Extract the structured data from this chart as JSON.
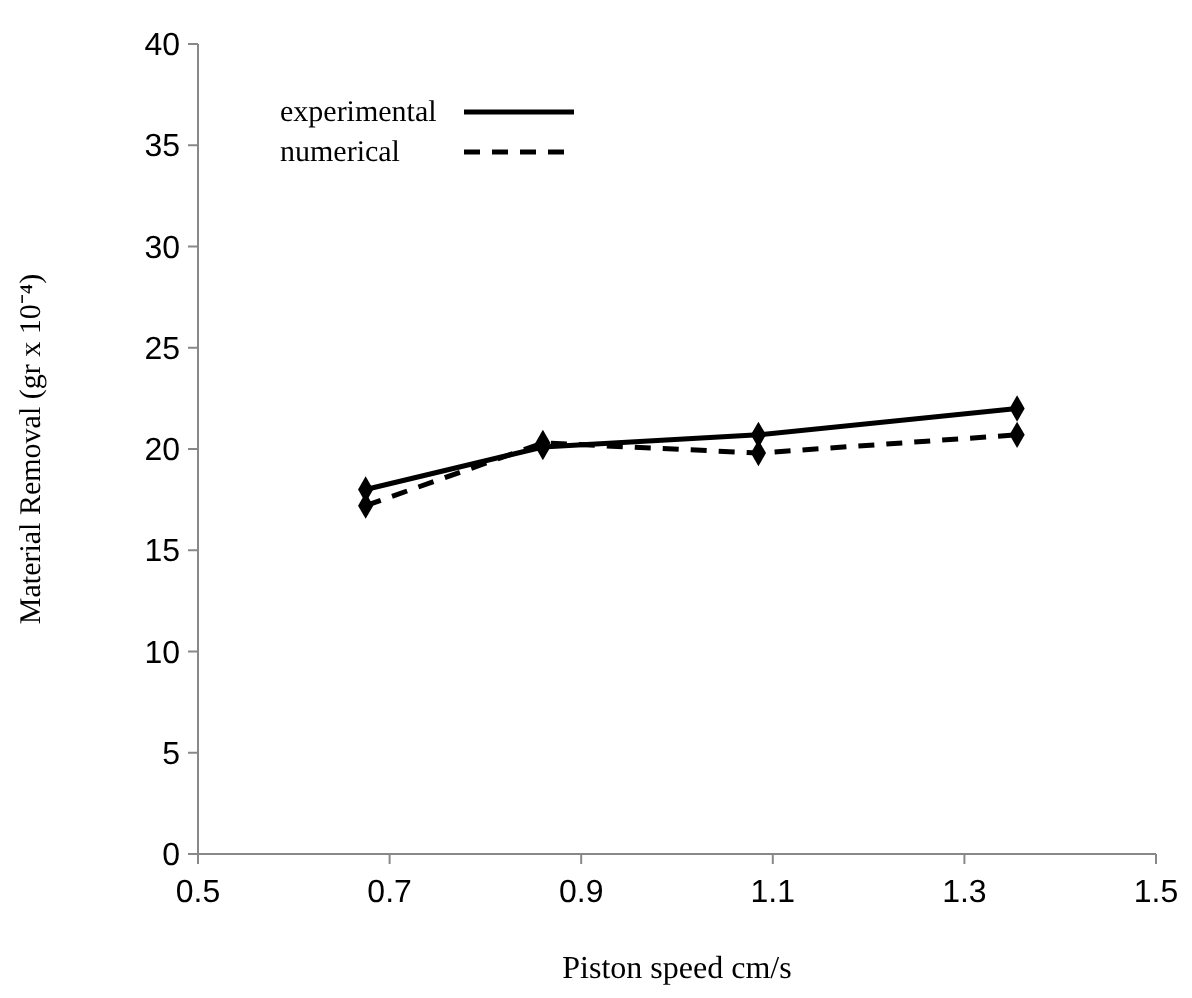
{
  "chart_data": {
    "type": "line",
    "xlabel": "Piston  speed cm/s",
    "ylabel": "Material Removal (gr x 10⁻⁴)",
    "xlim": [
      0.5,
      1.5
    ],
    "xticks": [
      0.5,
      0.7,
      0.9,
      1.1,
      1.3,
      1.5
    ],
    "ylim": [
      0,
      40
    ],
    "yticks": [
      0,
      5,
      10,
      15,
      20,
      25,
      30,
      35,
      40
    ],
    "grid": false,
    "legend": "top left",
    "marker": "diamond",
    "series": [
      {
        "name": "experimental",
        "color": "#000000",
        "line_style": "solid",
        "x": [
          0.675,
          0.86,
          1.085,
          1.355
        ],
        "values": [
          18,
          20.1,
          20.7,
          22
        ]
      },
      {
        "name": "numerical",
        "color": "#000000",
        "line_style": "dashed",
        "x": [
          0.675,
          0.86,
          1.085,
          1.355
        ],
        "values": [
          17.2,
          20.3,
          19.8,
          20.7
        ]
      }
    ]
  }
}
